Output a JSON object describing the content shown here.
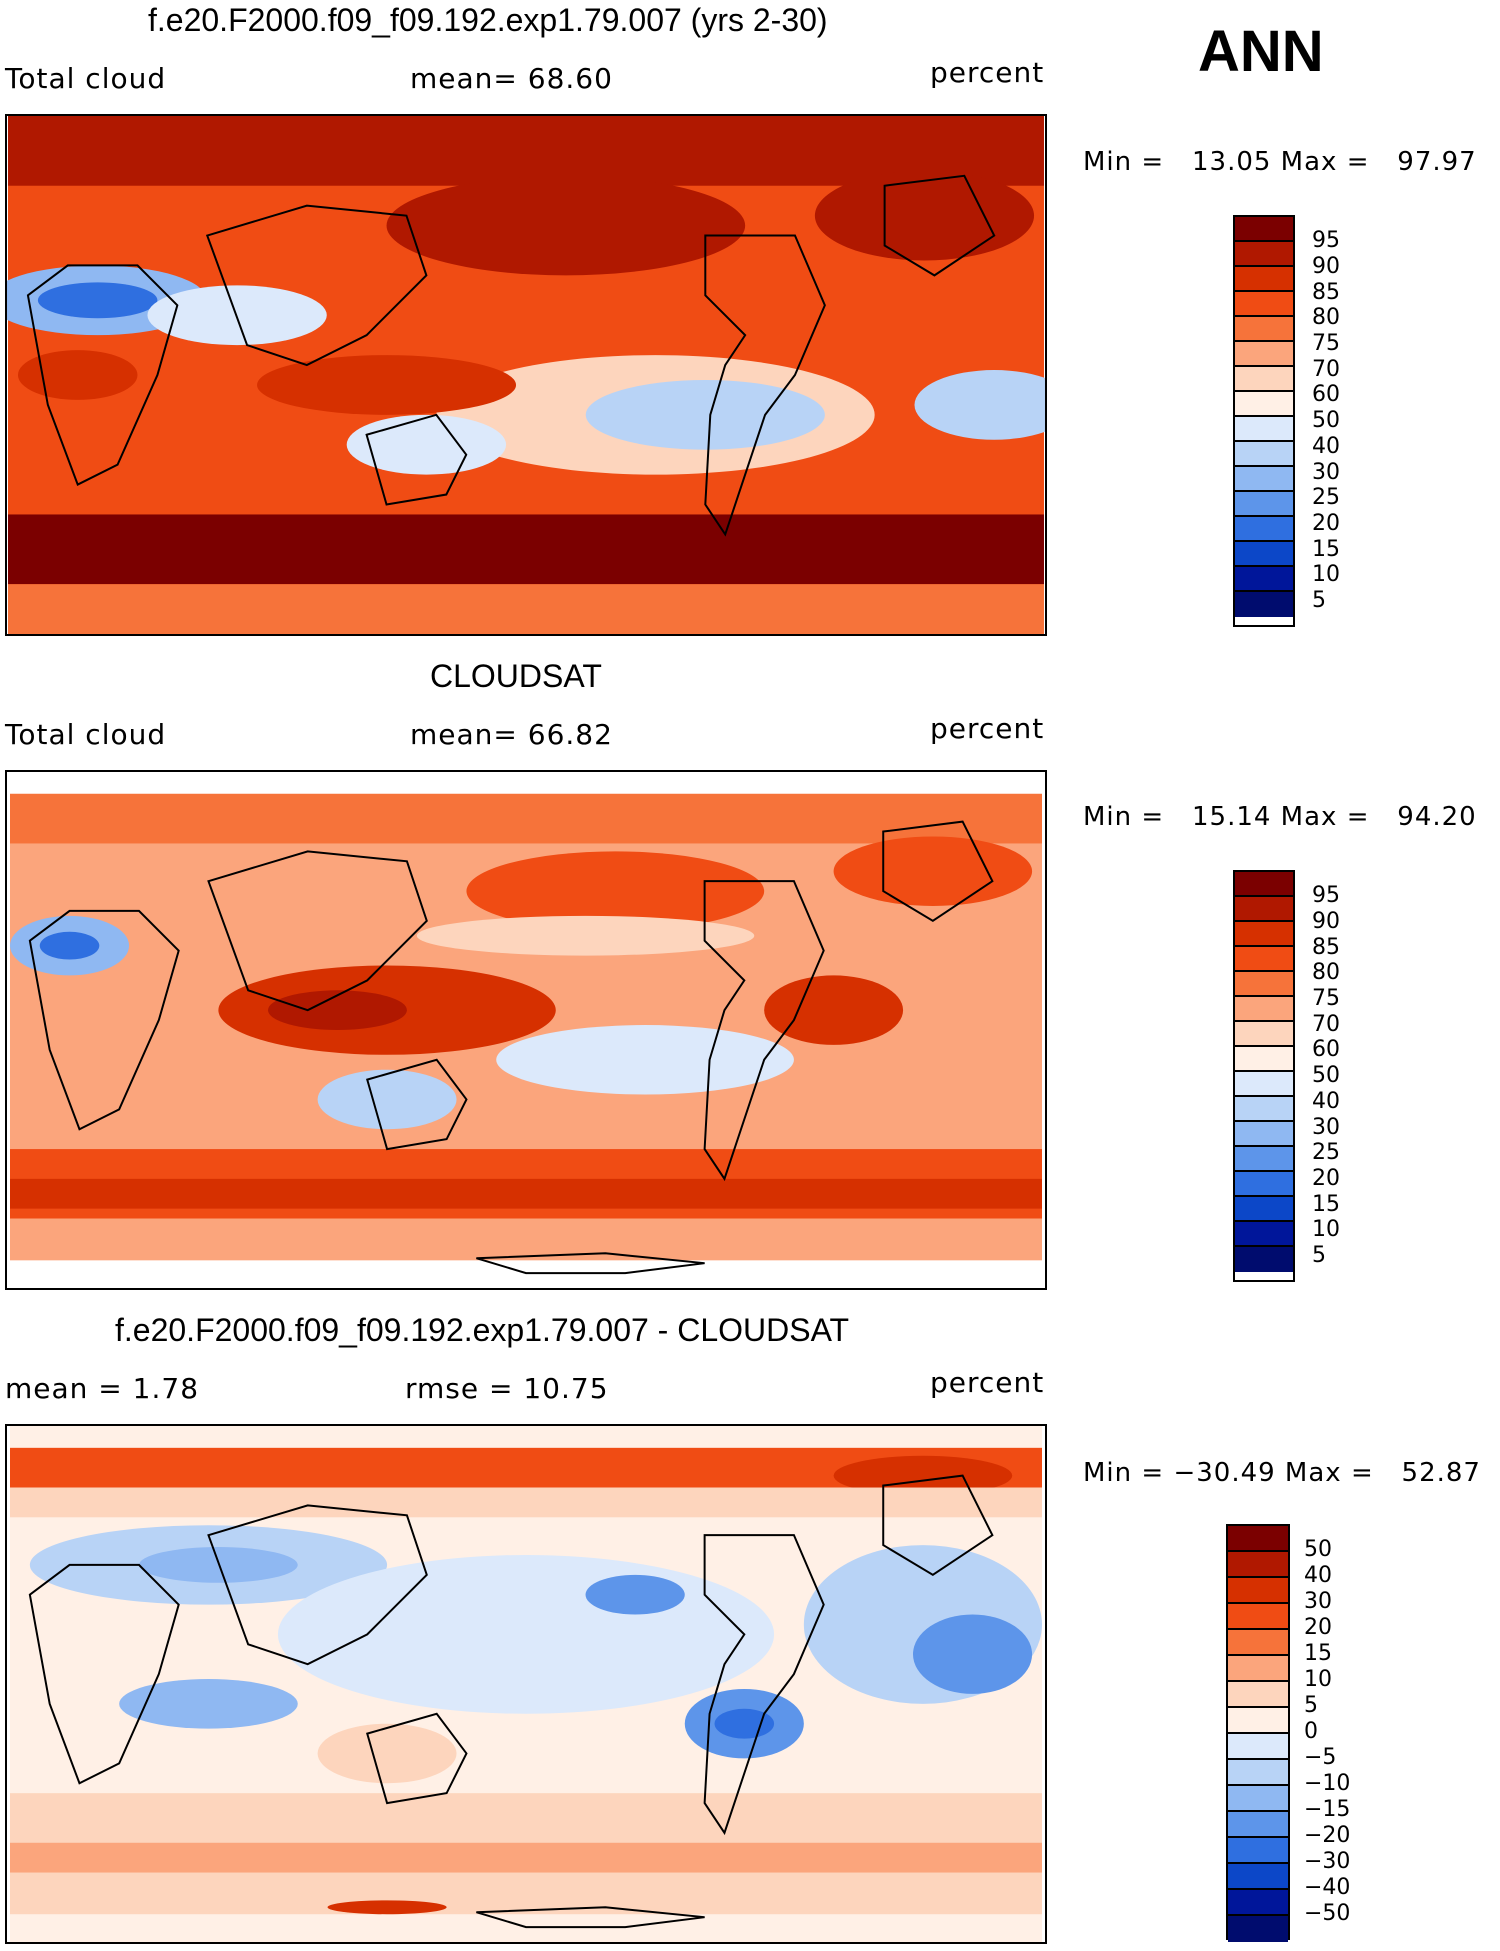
{
  "season": "ANN",
  "panels": [
    {
      "title": "f.e20.F2000.f09_f09.192.exp1.79.007 (yrs 2-30)",
      "left_label": "Total cloud",
      "mid_label": "mean=   68.60",
      "right_label": "percent",
      "minmax": "Min =   13.05 Max =   97.97",
      "colorbar_labels": [
        "95",
        "90",
        "85",
        "80",
        "75",
        "70",
        "60",
        "50",
        "40",
        "30",
        "25",
        "20",
        "15",
        "10",
        "5"
      ]
    },
    {
      "title": "CLOUDSAT",
      "left_label": "Total cloud",
      "mid_label": "mean=   66.82",
      "right_label": "percent",
      "minmax": "Min =   15.14 Max =   94.20",
      "colorbar_labels": [
        "95",
        "90",
        "85",
        "80",
        "75",
        "70",
        "60",
        "50",
        "40",
        "30",
        "25",
        "20",
        "15",
        "10",
        "5"
      ]
    },
    {
      "title": "f.e20.F2000.f09_f09.192.exp1.79.007 - CLOUDSAT",
      "left_label": "mean =     1.78",
      "mid_label": "rmse =    10.75",
      "right_label": "percent",
      "minmax": "Min = −30.49 Max =   52.87",
      "colorbar_labels": [
        "50",
        "40",
        "30",
        "20",
        "15",
        "10",
        "5",
        "0",
        "−5",
        "−10",
        "−15",
        "−20",
        "−30",
        "−40",
        "−50"
      ]
    }
  ],
  "colors": {
    "abs_scale": [
      "#7b0000",
      "#b01800",
      "#d63000",
      "#f04c14",
      "#f6733a",
      "#fba57c",
      "#fdd5bd",
      "#fff0e6",
      "#dce9fb",
      "#b8d3f6",
      "#8fb8f2",
      "#5d95ea",
      "#2f6fe0",
      "#0c47c8",
      "#00169a",
      "#000c6e"
    ],
    "diff_scale": [
      "#7b0000",
      "#b01800",
      "#d63000",
      "#f04c14",
      "#f6733a",
      "#fba57c",
      "#fdd5bd",
      "#fff0e6",
      "#dce9fb",
      "#b8d3f6",
      "#8fb8f2",
      "#5d95ea",
      "#2f6fe0",
      "#0c47c8",
      "#00169a",
      "#000c6e"
    ]
  }
}
